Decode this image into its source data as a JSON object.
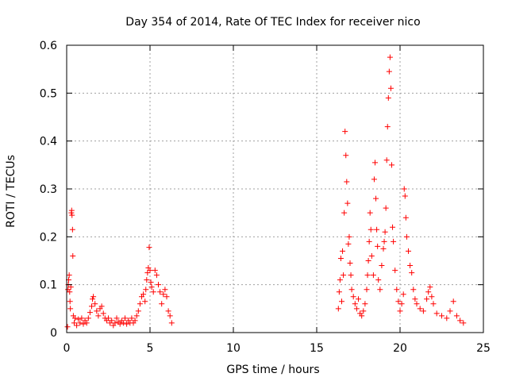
{
  "chart_data": {
    "type": "scatter",
    "title": "Day 354 of 2014, Rate Of TEC Index for receiver nico",
    "xlabel": "GPS time / hours",
    "ylabel": "ROTI / TECUs",
    "xlim": [
      0,
      25
    ],
    "ylim": [
      0,
      0.6
    ],
    "xticks": [
      0,
      5,
      10,
      15,
      20,
      25
    ],
    "xtick_labels": [
      "0",
      "5",
      "10",
      "15",
      "20",
      "25"
    ],
    "yticks": [
      0,
      0.1,
      0.2,
      0.3,
      0.4,
      0.5,
      0.6
    ],
    "ytick_labels": [
      "0",
      "0.1",
      "0.2",
      "0.3",
      "0.4",
      "0.5",
      "0.6"
    ],
    "grid": true,
    "marker": "+",
    "marker_color": "#ff0000",
    "series": [
      {
        "name": "ROTI",
        "points": [
          [
            0.05,
            0.012
          ],
          [
            0.08,
            0.09
          ],
          [
            0.1,
            0.1
          ],
          [
            0.12,
            0.11
          ],
          [
            0.15,
            0.12
          ],
          [
            0.18,
            0.085
          ],
          [
            0.2,
            0.065
          ],
          [
            0.22,
            0.05
          ],
          [
            0.25,
            0.095
          ],
          [
            0.28,
            0.25
          ],
          [
            0.3,
            0.255
          ],
          [
            0.32,
            0.245
          ],
          [
            0.35,
            0.215
          ],
          [
            0.37,
            0.16
          ],
          [
            0.4,
            0.035
          ],
          [
            0.45,
            0.02
          ],
          [
            0.5,
            0.03
          ],
          [
            0.6,
            0.015
          ],
          [
            0.7,
            0.028
          ],
          [
            0.8,
            0.02
          ],
          [
            0.9,
            0.03
          ],
          [
            1.0,
            0.018
          ],
          [
            1.1,
            0.025
          ],
          [
            1.2,
            0.02
          ],
          [
            1.3,
            0.03
          ],
          [
            1.4,
            0.042
          ],
          [
            1.5,
            0.055
          ],
          [
            1.55,
            0.07
          ],
          [
            1.6,
            0.075
          ],
          [
            1.7,
            0.06
          ],
          [
            1.8,
            0.045
          ],
          [
            1.9,
            0.035
          ],
          [
            2.0,
            0.05
          ],
          [
            2.1,
            0.055
          ],
          [
            2.2,
            0.04
          ],
          [
            2.3,
            0.03
          ],
          [
            2.4,
            0.025
          ],
          [
            2.5,
            0.03
          ],
          [
            2.6,
            0.02
          ],
          [
            2.7,
            0.025
          ],
          [
            2.8,
            0.015
          ],
          [
            2.9,
            0.02
          ],
          [
            3.0,
            0.03
          ],
          [
            3.1,
            0.022
          ],
          [
            3.2,
            0.018
          ],
          [
            3.3,
            0.025
          ],
          [
            3.4,
            0.02
          ],
          [
            3.5,
            0.03
          ],
          [
            3.6,
            0.018
          ],
          [
            3.7,
            0.025
          ],
          [
            3.8,
            0.02
          ],
          [
            3.9,
            0.03
          ],
          [
            4.0,
            0.02
          ],
          [
            4.1,
            0.025
          ],
          [
            4.2,
            0.035
          ],
          [
            4.3,
            0.045
          ],
          [
            4.4,
            0.06
          ],
          [
            4.5,
            0.075
          ],
          [
            4.6,
            0.08
          ],
          [
            4.7,
            0.065
          ],
          [
            4.75,
            0.09
          ],
          [
            4.8,
            0.11
          ],
          [
            4.85,
            0.125
          ],
          [
            4.9,
            0.135
          ],
          [
            4.95,
            0.178
          ],
          [
            5.0,
            0.13
          ],
          [
            5.05,
            0.105
          ],
          [
            5.1,
            0.095
          ],
          [
            5.2,
            0.085
          ],
          [
            5.3,
            0.13
          ],
          [
            5.4,
            0.12
          ],
          [
            5.5,
            0.1
          ],
          [
            5.6,
            0.085
          ],
          [
            5.7,
            0.06
          ],
          [
            5.8,
            0.08
          ],
          [
            5.9,
            0.09
          ],
          [
            6.0,
            0.075
          ],
          [
            6.1,
            0.045
          ],
          [
            6.2,
            0.035
          ],
          [
            6.3,
            0.02
          ],
          [
            16.3,
            0.05
          ],
          [
            16.35,
            0.085
          ],
          [
            16.4,
            0.11
          ],
          [
            16.45,
            0.155
          ],
          [
            16.5,
            0.065
          ],
          [
            16.55,
            0.17
          ],
          [
            16.6,
            0.12
          ],
          [
            16.65,
            0.25
          ],
          [
            16.7,
            0.42
          ],
          [
            16.75,
            0.37
          ],
          [
            16.8,
            0.315
          ],
          [
            16.85,
            0.27
          ],
          [
            16.9,
            0.185
          ],
          [
            16.95,
            0.2
          ],
          [
            17.0,
            0.145
          ],
          [
            17.05,
            0.12
          ],
          [
            17.1,
            0.09
          ],
          [
            17.2,
            0.075
          ],
          [
            17.3,
            0.06
          ],
          [
            17.4,
            0.05
          ],
          [
            17.5,
            0.07
          ],
          [
            17.6,
            0.04
          ],
          [
            17.7,
            0.035
          ],
          [
            17.8,
            0.045
          ],
          [
            17.9,
            0.06
          ],
          [
            18.0,
            0.09
          ],
          [
            18.05,
            0.12
          ],
          [
            18.1,
            0.15
          ],
          [
            18.15,
            0.19
          ],
          [
            18.2,
            0.25
          ],
          [
            18.25,
            0.215
          ],
          [
            18.3,
            0.16
          ],
          [
            18.4,
            0.12
          ],
          [
            18.45,
            0.32
          ],
          [
            18.5,
            0.355
          ],
          [
            18.55,
            0.28
          ],
          [
            18.6,
            0.215
          ],
          [
            18.65,
            0.18
          ],
          [
            18.7,
            0.11
          ],
          [
            18.8,
            0.09
          ],
          [
            18.9,
            0.14
          ],
          [
            19.0,
            0.175
          ],
          [
            19.05,
            0.19
          ],
          [
            19.1,
            0.21
          ],
          [
            19.15,
            0.26
          ],
          [
            19.2,
            0.36
          ],
          [
            19.25,
            0.43
          ],
          [
            19.3,
            0.49
          ],
          [
            19.35,
            0.545
          ],
          [
            19.4,
            0.575
          ],
          [
            19.45,
            0.51
          ],
          [
            19.5,
            0.35
          ],
          [
            19.55,
            0.22
          ],
          [
            19.6,
            0.19
          ],
          [
            19.7,
            0.13
          ],
          [
            19.8,
            0.09
          ],
          [
            19.9,
            0.065
          ],
          [
            20.0,
            0.045
          ],
          [
            20.1,
            0.06
          ],
          [
            20.2,
            0.08
          ],
          [
            20.25,
            0.3
          ],
          [
            20.3,
            0.285
          ],
          [
            20.35,
            0.24
          ],
          [
            20.4,
            0.2
          ],
          [
            20.5,
            0.17
          ],
          [
            20.6,
            0.14
          ],
          [
            20.7,
            0.125
          ],
          [
            20.8,
            0.09
          ],
          [
            20.9,
            0.07
          ],
          [
            21.0,
            0.06
          ],
          [
            21.2,
            0.05
          ],
          [
            21.4,
            0.045
          ],
          [
            21.6,
            0.07
          ],
          [
            21.7,
            0.085
          ],
          [
            21.8,
            0.095
          ],
          [
            21.9,
            0.075
          ],
          [
            22.0,
            0.06
          ],
          [
            22.2,
            0.04
          ],
          [
            22.5,
            0.035
          ],
          [
            22.8,
            0.03
          ],
          [
            23.0,
            0.045
          ],
          [
            23.2,
            0.065
          ],
          [
            23.4,
            0.035
          ],
          [
            23.6,
            0.025
          ],
          [
            23.8,
            0.02
          ]
        ]
      }
    ]
  }
}
